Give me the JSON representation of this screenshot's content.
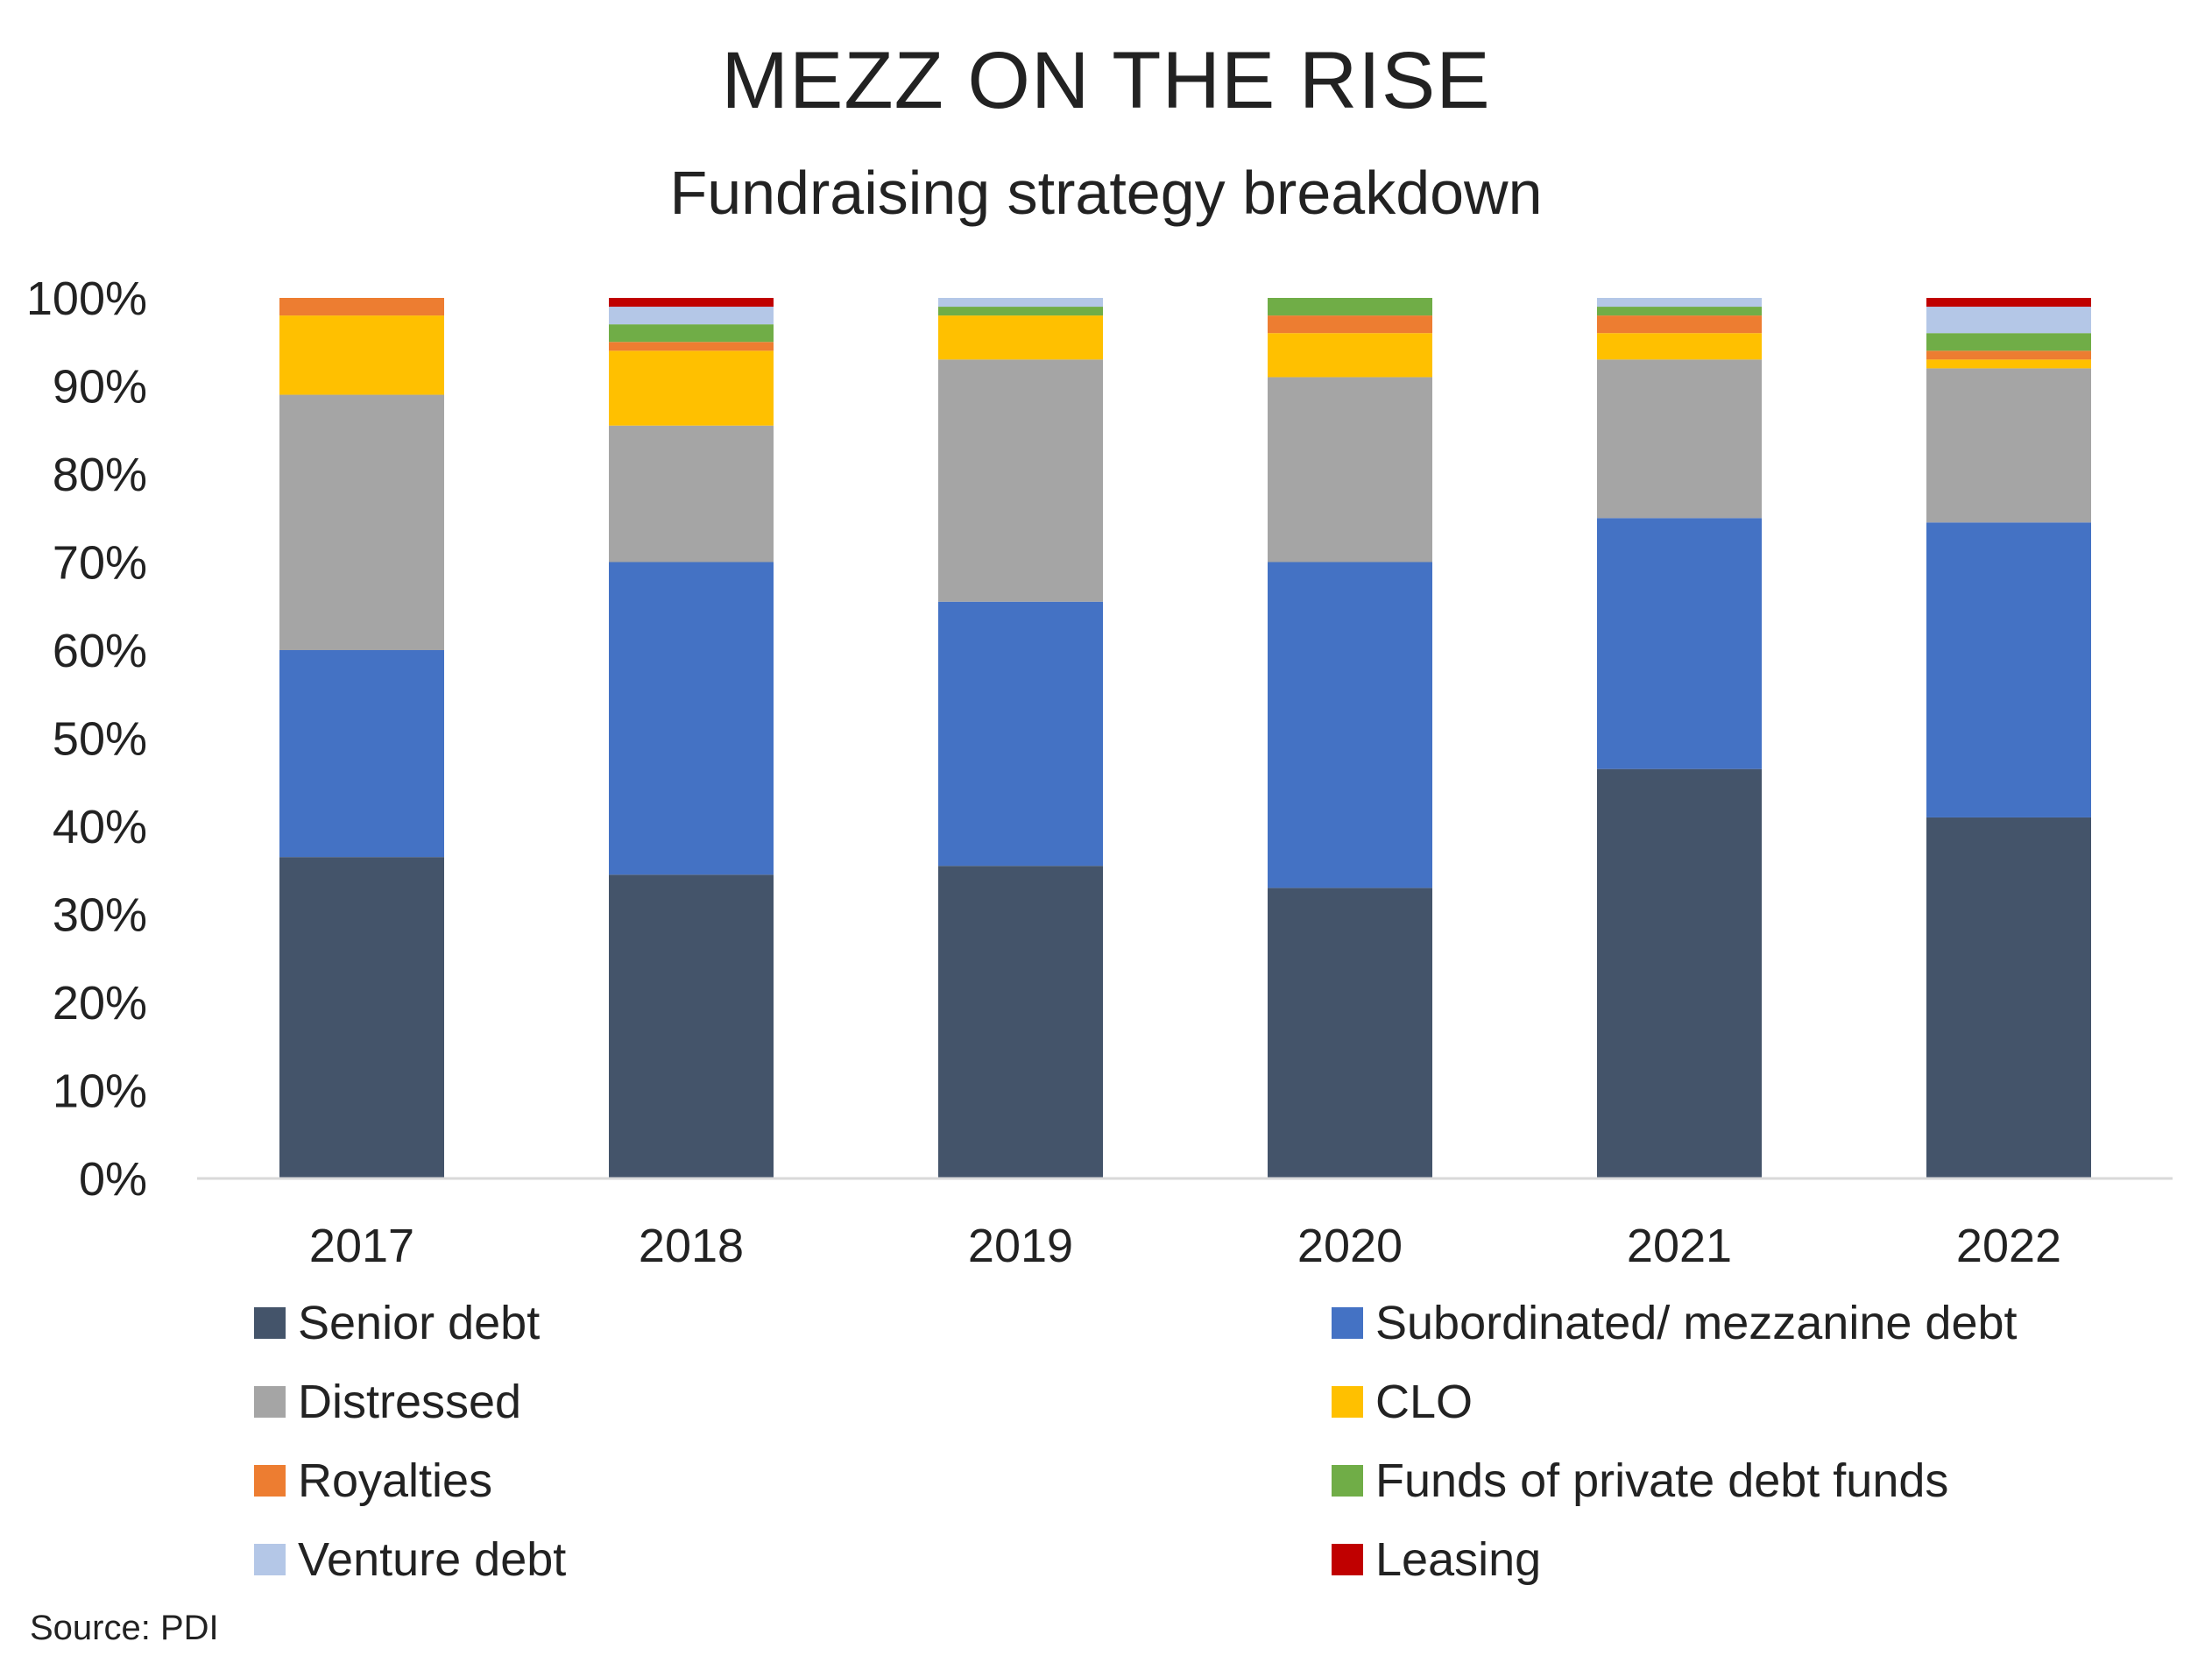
{
  "chart_data": {
    "type": "bar",
    "stacked": true,
    "title": "MEZZ ON THE RISE",
    "subtitle": "Fundraising strategy breakdown",
    "categories": [
      "2017",
      "2018",
      "2019",
      "2020",
      "2021",
      "2022"
    ],
    "y_tick_labels": [
      "0%",
      "10%",
      "20%",
      "30%",
      "40%",
      "50%",
      "60%",
      "70%",
      "80%",
      "90%",
      "100%"
    ],
    "ylim": [
      0,
      100
    ],
    "grid": false,
    "legend_position": "bottom",
    "series": [
      {
        "name": "Senior debt",
        "color": "#44546A",
        "values": [
          36.5,
          34.5,
          35.5,
          33,
          46.5,
          41
        ]
      },
      {
        "name": "Subordinated/ mezzanine debt",
        "color": "#4472C4",
        "values": [
          23.5,
          35.5,
          30,
          37,
          28.5,
          33.5
        ]
      },
      {
        "name": "Distressed",
        "color": "#A5A5A5",
        "values": [
          29,
          15.5,
          27.5,
          21,
          18,
          17.5
        ]
      },
      {
        "name": "CLO",
        "color": "#FFC000",
        "values": [
          9,
          8.5,
          5,
          5,
          3,
          1
        ]
      },
      {
        "name": "Royalties",
        "color": "#ED7D31",
        "values": [
          2,
          1,
          0,
          2,
          2,
          1
        ]
      },
      {
        "name": "Funds of private debt funds",
        "color": "#70AD47",
        "values": [
          0,
          2,
          1,
          2,
          1,
          2
        ]
      },
      {
        "name": "Venture debt",
        "color": "#B4C7E7",
        "values": [
          0,
          2,
          1,
          0,
          1,
          3
        ]
      },
      {
        "name": "Leasing",
        "color": "#C00000",
        "values": [
          0,
          1,
          0,
          0,
          0,
          1
        ]
      }
    ]
  },
  "source_note": "Source: PDI"
}
